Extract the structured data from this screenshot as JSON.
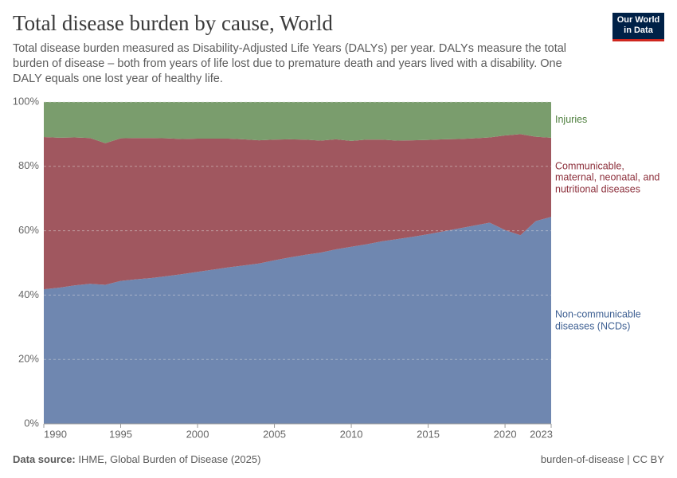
{
  "chart_data": {
    "type": "area",
    "title": "Total disease burden by cause, World",
    "subtitle": "Total disease burden measured as Disability-Adjusted Life Years (DALYs) per year. DALYs measure the total burden of disease – both from years of life lost due to premature death and years lived with a disability. One DALY equals one lost year of healthy life.",
    "logo": [
      "Our World",
      "in Data"
    ],
    "source_label": "Data source:",
    "source": "IHME, Global Burden of Disease (2025)",
    "footer_right": "burden-of-disease | CC BY",
    "stacked": true,
    "x": [
      1990,
      1991,
      1992,
      1993,
      1994,
      1995,
      1996,
      1997,
      1998,
      1999,
      2000,
      2001,
      2002,
      2003,
      2004,
      2005,
      2006,
      2007,
      2008,
      2009,
      2010,
      2011,
      2012,
      2013,
      2014,
      2015,
      2016,
      2017,
      2018,
      2019,
      2020,
      2021,
      2022,
      2023
    ],
    "xlim": [
      1990,
      2023
    ],
    "xticks": [
      1990,
      1995,
      2000,
      2005,
      2010,
      2015,
      2020,
      2023
    ],
    "ylim": [
      0,
      100
    ],
    "yticks": [
      {
        "value": 0,
        "label": "0%"
      },
      {
        "value": 20,
        "label": "20%"
      },
      {
        "value": 40,
        "label": "40%"
      },
      {
        "value": 60,
        "label": "60%"
      },
      {
        "value": 80,
        "label": "80%"
      },
      {
        "value": 100,
        "label": "100%"
      }
    ],
    "series": [
      {
        "name": "Non-communicable diseases (NCDs)",
        "color": "#6f87b0",
        "label_color": "#3d5f92",
        "values": [
          41.8,
          42.3,
          43.0,
          43.5,
          43.2,
          44.4,
          44.9,
          45.3,
          45.9,
          46.5,
          47.2,
          47.9,
          48.6,
          49.2,
          49.8,
          50.8,
          51.7,
          52.5,
          53.2,
          54.2,
          55.0,
          55.8,
          56.7,
          57.4,
          58.1,
          58.9,
          59.8,
          60.7,
          61.6,
          62.5,
          60.2,
          58.6,
          63.0,
          64.3
        ]
      },
      {
        "name": "Communicable, maternal, neonatal, and nutritional diseases",
        "color": "#a0575f",
        "label_color": "#8c2f3b",
        "values": [
          47.3,
          46.6,
          46.0,
          45.3,
          44.0,
          44.3,
          43.9,
          43.5,
          42.8,
          42.0,
          41.4,
          40.7,
          40.0,
          39.2,
          38.3,
          37.5,
          36.7,
          35.8,
          34.8,
          34.2,
          32.9,
          32.5,
          31.6,
          30.6,
          30.0,
          29.3,
          28.6,
          27.8,
          27.1,
          26.5,
          29.4,
          31.4,
          26.2,
          24.6
        ]
      },
      {
        "name": "Injuries",
        "color": "#7a9d6d",
        "label_color": "#4f7f3e",
        "values": [
          10.9,
          11.1,
          11.0,
          11.2,
          12.8,
          11.3,
          11.2,
          11.2,
          11.3,
          11.5,
          11.4,
          11.4,
          11.4,
          11.6,
          11.9,
          11.7,
          11.6,
          11.7,
          12.0,
          11.6,
          12.1,
          11.7,
          11.7,
          12.0,
          11.9,
          11.8,
          11.6,
          11.5,
          11.3,
          11.0,
          10.4,
          10.0,
          10.8,
          11.1
        ]
      }
    ],
    "grid": true
  }
}
